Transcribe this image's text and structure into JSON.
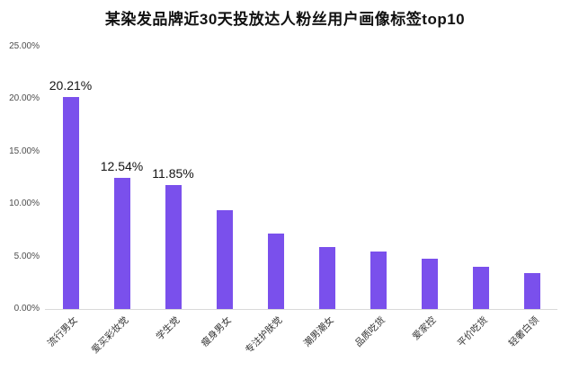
{
  "chart_data": {
    "type": "bar",
    "title": "某染发品牌近30天投放达人粉丝用户画像标签top10",
    "categories": [
      "流行男女",
      "爱买彩妆党",
      "学生党",
      "瘦身男女",
      "专注护肤党",
      "潮男潮女",
      "品质吃货",
      "爱家控",
      "平价吃货",
      "轻奢白领"
    ],
    "values": [
      20.21,
      12.54,
      11.85,
      9.4,
      7.2,
      5.9,
      5.5,
      4.8,
      4.0,
      3.4
    ],
    "value_labels": [
      "20.21%",
      "12.54%",
      "11.85%",
      "",
      "",
      "",
      "",
      "",
      "",
      ""
    ],
    "y_ticks": [
      "25.00%",
      "20.00%",
      "15.00%",
      "10.00%",
      "5.00%",
      "0.00%"
    ],
    "ylim": [
      0,
      25
    ],
    "grid": false,
    "legend": "none",
    "xlabel": "",
    "ylabel": "",
    "bar_color": "#7a50ec",
    "title_color": "#111111",
    "axis_label_color": "#4d4d4d",
    "category_label_color": "#333333",
    "value_label_color": "#141414",
    "axis_line_color": "#d9d9d9",
    "background_color": "#ffffff"
  }
}
